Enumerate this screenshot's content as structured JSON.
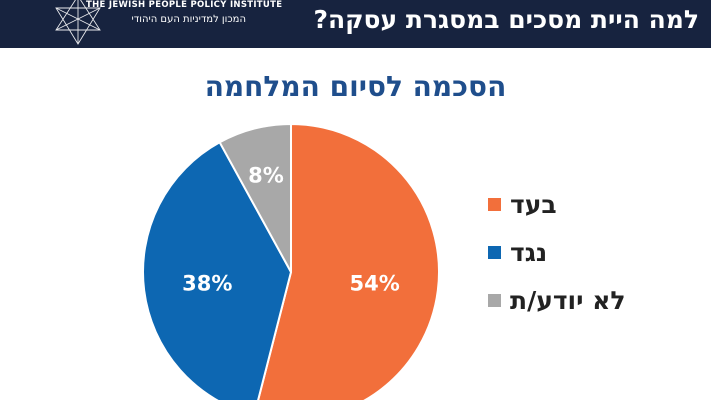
{
  "header": {
    "title": "למה היית מסכים במסגרת עסקה?",
    "logo_en": "THE JEWISH PEOPLE POLICY INSTITUTE",
    "logo_he": "המכון למדיניות העם היהודי"
  },
  "colors": {
    "header_bg": "#17233f",
    "title_blue": "#1f4e8c",
    "favor": "#f26f3b",
    "against": "#0d67b2",
    "dont_know": "#a8a8a8"
  },
  "chart_data": {
    "type": "pie",
    "title": "הסכמה לסיום המלחמה",
    "categories": [
      "בעד",
      "נגד",
      "לא יודע/ת"
    ],
    "values": [
      54,
      38,
      8
    ],
    "data_labels": [
      "54%",
      "38%",
      "8%"
    ],
    "legend_position": "right"
  }
}
